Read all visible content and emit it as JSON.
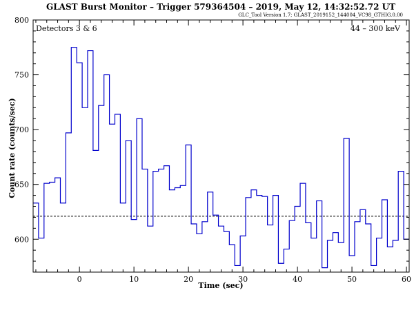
{
  "header": {
    "title": "GLAST Burst Monitor  –  Trigger 579364504  –  2019, May 12, 14:32:52.72 UT",
    "version": "GLC_Tool Version 1.7; GLAST_2019152_144004_VC98_GTHIG.0.00"
  },
  "chart_data": {
    "type": "line",
    "style": "histogram-step",
    "title": "GLAST Burst Monitor  –  Trigger 579364504  –  2019, May 12, 14:32:52.72 UT",
    "xlabel": "Time (sec)",
    "ylabel": "Count rate (counts/sec)",
    "xlim": [
      -8.5,
      60.5
    ],
    "ylim": [
      570,
      800
    ],
    "x_ticks": [
      0,
      10,
      20,
      30,
      40,
      50,
      60
    ],
    "y_ticks": [
      600,
      650,
      700,
      750,
      800
    ],
    "annotations": {
      "left": "Detectors 3 & 6",
      "right": "44 – 300 keV"
    },
    "background_level": 621,
    "bin_width": 1,
    "series": [
      {
        "color": "#0000cc",
        "bin_starts": [
          -8.5,
          -7.5,
          -6.5,
          -5.5,
          -4.5,
          -3.5,
          -2.5,
          -1.5,
          -0.5,
          0.5,
          1.5,
          2.5,
          3.5,
          4.5,
          5.5,
          6.5,
          7.5,
          8.5,
          9.5,
          10.5,
          11.5,
          12.5,
          13.5,
          14.5,
          15.5,
          16.5,
          17.5,
          18.5,
          19.5,
          20.5,
          21.5,
          22.5,
          23.5,
          24.5,
          25.5,
          26.5,
          27.5,
          28.5,
          29.5,
          30.5,
          31.5,
          32.5,
          33.5,
          34.5,
          35.5,
          36.5,
          37.5,
          38.5,
          39.5,
          40.5,
          41.5,
          42.5,
          43.5,
          44.5,
          45.5,
          46.5,
          47.5,
          48.5,
          49.5,
          50.5,
          51.5,
          52.5,
          53.5,
          54.5,
          55.5,
          56.5,
          57.5,
          58.5,
          59.5
        ],
        "values": [
          633,
          601,
          651,
          652,
          656,
          633,
          697,
          775,
          761,
          720,
          772,
          681,
          722,
          750,
          705,
          714,
          633,
          690,
          618,
          710,
          664,
          612,
          662,
          664,
          667,
          645,
          647,
          649,
          686,
          614,
          605,
          616,
          643,
          622,
          612,
          607,
          595,
          576,
          603,
          638,
          645,
          640,
          639,
          613,
          640,
          578,
          591,
          617,
          630,
          651,
          615,
          601,
          635,
          574,
          599,
          606,
          597,
          692,
          585,
          616,
          627,
          614,
          576,
          601,
          636,
          593,
          599,
          662,
          600
        ]
      }
    ]
  }
}
